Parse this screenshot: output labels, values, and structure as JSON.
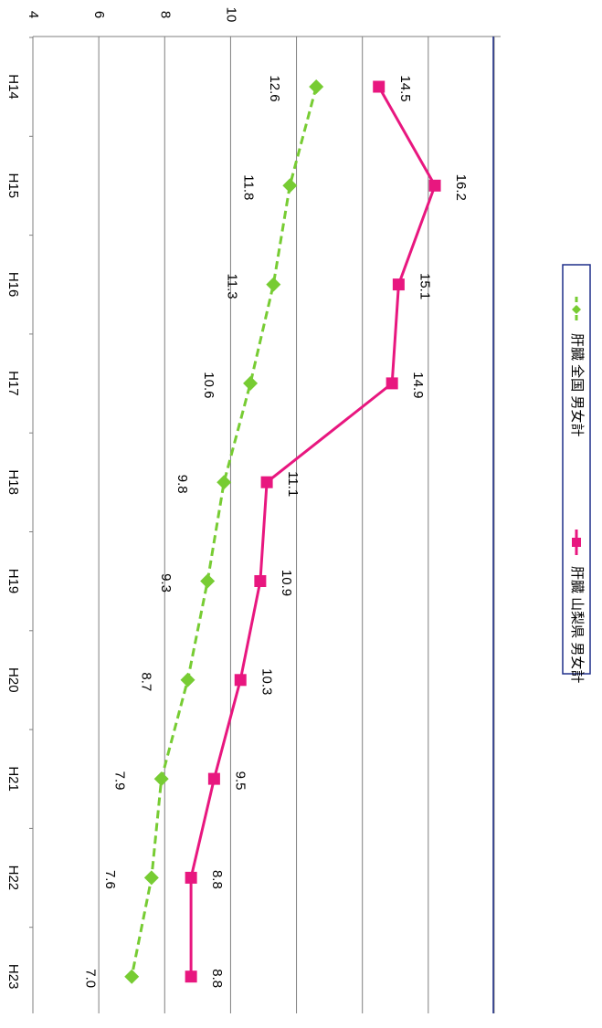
{
  "chart_data": {
    "type": "line",
    "orientation": "rotated-90-clockwise",
    "categories": [
      "H14",
      "H15",
      "H16",
      "H17",
      "H18",
      "H19",
      "H20",
      "H21",
      "H22",
      "H23"
    ],
    "y_ticks": [
      "4",
      "6",
      "8",
      "10"
    ],
    "ylim": [
      4,
      18
    ],
    "grid": true,
    "legend_position": "right",
    "series": [
      {
        "name": "肝臓 全国 男女計",
        "values": [
          12.6,
          11.8,
          11.3,
          10.6,
          9.8,
          9.3,
          8.7,
          7.9,
          7.6,
          7.0
        ],
        "labels": [
          "12.6",
          "11.8",
          "11.3",
          "10.6",
          "9.8",
          "9.3",
          "8.7",
          "7.9",
          "7.6",
          "7.0"
        ],
        "color": "#77cc33",
        "line_style": "dashed",
        "marker": "diamond"
      },
      {
        "name": "肝臓 山梨県 男女計",
        "values": [
          14.5,
          16.2,
          15.1,
          14.9,
          11.1,
          10.9,
          10.3,
          9.5,
          8.8,
          8.8
        ],
        "labels": [
          "14.5",
          "16.2",
          "15.1",
          "14.9",
          "11.1",
          "10.9",
          "10.3",
          "9.5",
          "8.8",
          "8.8"
        ],
        "color": "#e8177f",
        "line_style": "solid",
        "marker": "square"
      }
    ]
  }
}
